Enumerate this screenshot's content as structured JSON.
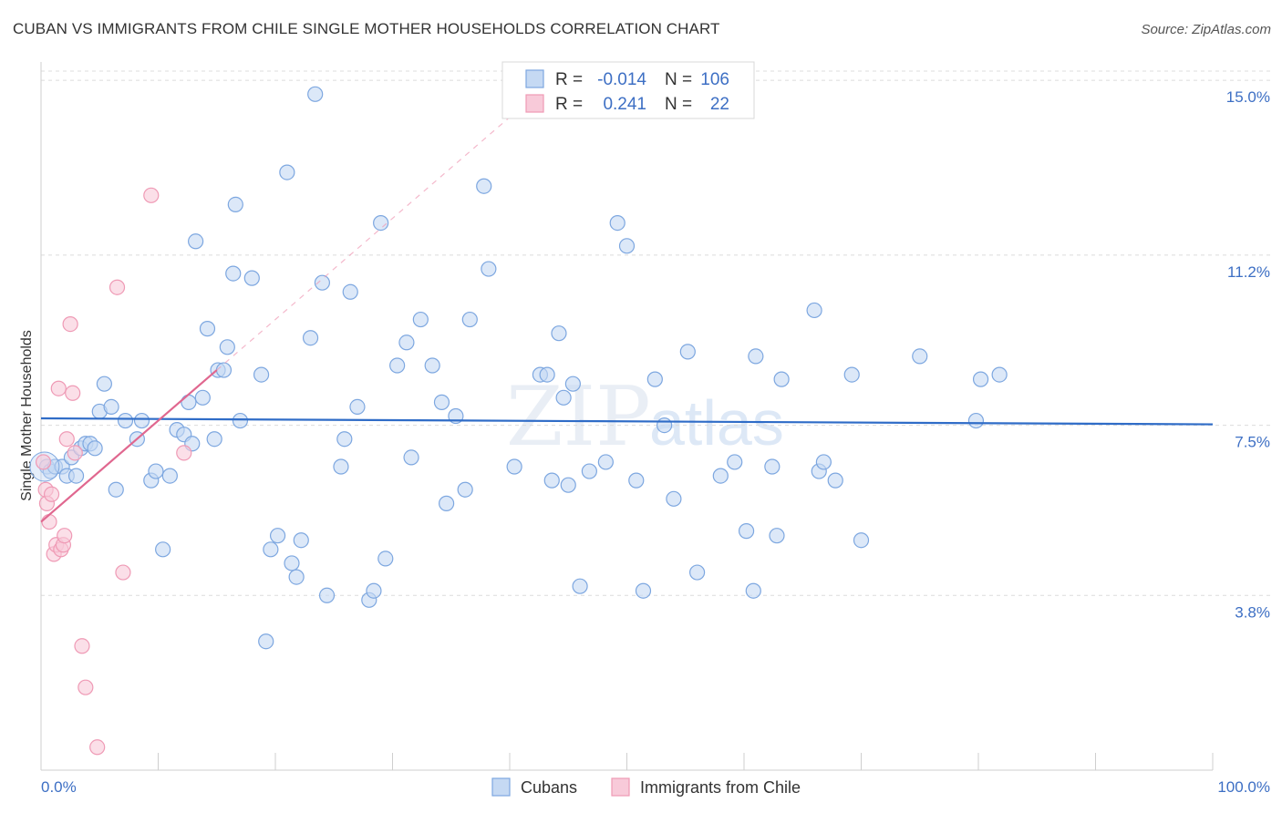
{
  "header": {
    "title": "CUBAN VS IMMIGRANTS FROM CHILE SINGLE MOTHER HOUSEHOLDS CORRELATION CHART",
    "source": "Source: ZipAtlas.com"
  },
  "watermark": {
    "part1": "ZIP",
    "part2": "atlas"
  },
  "colors": {
    "cuban": "#7da7e0",
    "cuban_fill": "#c5d9f3",
    "cuban_line": "#2f6cc7",
    "chile": "#ef9ab5",
    "chile_fill": "#f8cad9",
    "chile_line": "#e0678f",
    "grid": "#dcdcdc",
    "axis_text": "#3d6fc4"
  },
  "legend": {
    "row1": {
      "r_label": "R =",
      "r_value": "-0.014",
      "n_label": "N =",
      "n_value": "106"
    },
    "row2": {
      "r_label": "R =",
      "r_value": "0.241",
      "n_label": "N =",
      "n_value": "22"
    }
  },
  "chart_data": {
    "type": "scatter",
    "title": "CUBAN VS IMMIGRANTS FROM CHILE SINGLE MOTHER HOUSEHOLDS CORRELATION CHART",
    "xlabel": "",
    "ylabel": "Single Mother Households",
    "xlim": [
      0,
      100
    ],
    "ylim": [
      0,
      15.4
    ],
    "x_tick_labels": [
      "0.0%",
      "100.0%"
    ],
    "y_ticks": [
      3.8,
      7.5,
      11.2,
      15.0
    ],
    "y_tick_labels": [
      "3.8%",
      "7.5%",
      "11.2%",
      "15.0%"
    ],
    "grid": true,
    "legend_position": "top-center",
    "series": [
      {
        "name": "Cubans",
        "r": -0.014,
        "n": 106,
        "trend": {
          "x0": 0,
          "y0": 7.65,
          "x1": 100,
          "y1": 7.52
        },
        "points": [
          [
            0.5,
            6.6
          ],
          [
            0.8,
            6.5
          ],
          [
            1.2,
            6.6
          ],
          [
            1.8,
            6.6
          ],
          [
            2.2,
            6.4
          ],
          [
            2.6,
            6.8
          ],
          [
            3.0,
            6.4
          ],
          [
            3.4,
            7.0
          ],
          [
            3.8,
            7.1
          ],
          [
            4.2,
            7.1
          ],
          [
            4.6,
            7.0
          ],
          [
            5.0,
            7.8
          ],
          [
            5.4,
            8.4
          ],
          [
            6.0,
            7.9
          ],
          [
            6.4,
            6.1
          ],
          [
            7.2,
            7.6
          ],
          [
            8.2,
            7.2
          ],
          [
            8.6,
            7.6
          ],
          [
            9.4,
            6.3
          ],
          [
            9.8,
            6.5
          ],
          [
            10.4,
            4.8
          ],
          [
            11.0,
            6.4
          ],
          [
            11.6,
            7.4
          ],
          [
            12.2,
            7.3
          ],
          [
            12.6,
            8.0
          ],
          [
            12.9,
            7.1
          ],
          [
            13.2,
            11.5
          ],
          [
            13.8,
            8.1
          ],
          [
            14.2,
            9.6
          ],
          [
            14.8,
            7.2
          ],
          [
            15.1,
            8.7
          ],
          [
            15.6,
            8.7
          ],
          [
            15.9,
            9.2
          ],
          [
            16.4,
            10.8
          ],
          [
            16.6,
            12.3
          ],
          [
            17.0,
            7.6
          ],
          [
            18.0,
            10.7
          ],
          [
            18.8,
            8.6
          ],
          [
            19.2,
            2.8
          ],
          [
            19.6,
            4.8
          ],
          [
            20.2,
            5.1
          ],
          [
            21.0,
            13.0
          ],
          [
            21.4,
            4.5
          ],
          [
            21.8,
            4.2
          ],
          [
            22.2,
            5.0
          ],
          [
            23.0,
            9.4
          ],
          [
            23.4,
            14.7
          ],
          [
            24.0,
            10.6
          ],
          [
            24.4,
            3.8
          ],
          [
            25.6,
            6.6
          ],
          [
            25.9,
            7.2
          ],
          [
            26.4,
            10.4
          ],
          [
            27.0,
            7.9
          ],
          [
            28.0,
            3.7
          ],
          [
            28.4,
            3.9
          ],
          [
            29.0,
            11.9
          ],
          [
            29.4,
            4.6
          ],
          [
            30.4,
            8.8
          ],
          [
            31.2,
            9.3
          ],
          [
            31.6,
            6.8
          ],
          [
            32.4,
            9.8
          ],
          [
            33.4,
            8.8
          ],
          [
            34.2,
            8.0
          ],
          [
            34.6,
            5.8
          ],
          [
            35.4,
            7.7
          ],
          [
            36.2,
            6.1
          ],
          [
            36.6,
            9.8
          ],
          [
            37.8,
            12.7
          ],
          [
            38.2,
            10.9
          ],
          [
            40.4,
            6.6
          ],
          [
            42.6,
            8.6
          ],
          [
            43.2,
            8.6
          ],
          [
            43.6,
            6.3
          ],
          [
            44.2,
            9.5
          ],
          [
            44.6,
            8.1
          ],
          [
            45.0,
            6.2
          ],
          [
            45.4,
            8.4
          ],
          [
            46.0,
            4.0
          ],
          [
            46.8,
            6.5
          ],
          [
            48.2,
            6.7
          ],
          [
            49.2,
            11.9
          ],
          [
            50.0,
            11.4
          ],
          [
            50.8,
            6.3
          ],
          [
            51.4,
            3.9
          ],
          [
            52.4,
            8.5
          ],
          [
            53.2,
            7.5
          ],
          [
            54.0,
            5.9
          ],
          [
            55.2,
            9.1
          ],
          [
            56.0,
            4.3
          ],
          [
            58.0,
            6.4
          ],
          [
            59.2,
            6.7
          ],
          [
            60.2,
            5.2
          ],
          [
            60.8,
            3.9
          ],
          [
            61.0,
            9.0
          ],
          [
            62.4,
            6.6
          ],
          [
            62.8,
            5.1
          ],
          [
            63.2,
            8.5
          ],
          [
            66.0,
            10.0
          ],
          [
            66.4,
            6.5
          ],
          [
            66.8,
            6.7
          ],
          [
            67.8,
            6.3
          ],
          [
            69.2,
            8.6
          ],
          [
            70.0,
            5.0
          ],
          [
            75.0,
            9.0
          ],
          [
            79.8,
            7.6
          ],
          [
            80.2,
            8.5
          ],
          [
            81.8,
            8.6
          ]
        ]
      },
      {
        "name": "Immigrants from Chile",
        "r": 0.241,
        "n": 22,
        "trend": {
          "x0": 0,
          "y0": 5.4,
          "x1": 15,
          "y1": 8.7
        },
        "trend_dashed_to": {
          "x": 40,
          "y": 14.2
        },
        "points": [
          [
            0.2,
            6.7
          ],
          [
            0.4,
            6.1
          ],
          [
            0.5,
            5.8
          ],
          [
            0.7,
            5.4
          ],
          [
            0.9,
            6.0
          ],
          [
            1.1,
            4.7
          ],
          [
            1.3,
            4.9
          ],
          [
            1.5,
            8.3
          ],
          [
            1.7,
            4.8
          ],
          [
            1.9,
            4.9
          ],
          [
            2.0,
            5.1
          ],
          [
            2.2,
            7.2
          ],
          [
            2.5,
            9.7
          ],
          [
            2.7,
            8.2
          ],
          [
            2.9,
            6.9
          ],
          [
            3.5,
            2.7
          ],
          [
            3.8,
            1.8
          ],
          [
            4.8,
            0.5
          ],
          [
            6.5,
            10.5
          ],
          [
            7.0,
            4.3
          ],
          [
            9.4,
            12.5
          ],
          [
            12.2,
            6.9
          ]
        ]
      }
    ]
  },
  "bottom_legend": {
    "item1": "Cubans",
    "item2": "Immigrants from Chile"
  }
}
